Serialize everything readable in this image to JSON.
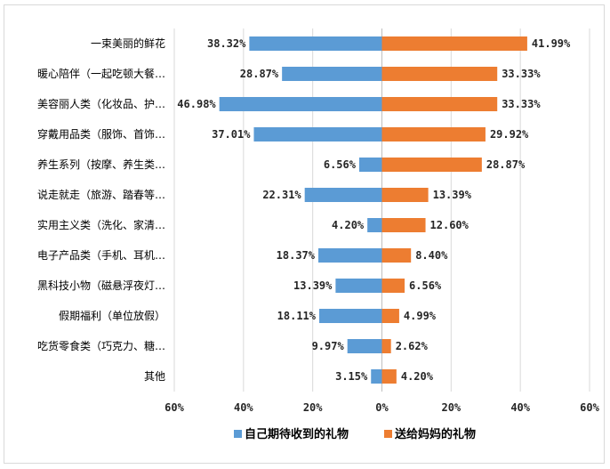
{
  "chart_data": {
    "type": "bar",
    "orientation": "horizontal-butterfly",
    "categories": [
      "一束美丽的鲜花",
      "暖心陪伴（一起吃顿大餐…",
      "美容丽人类（化妆品、护…",
      "穿戴用品类（服饰、首饰…",
      "养生系列（按摩、养生类…",
      "说走就走（旅游、踏春等…",
      "实用主义类（洗化、家清…",
      "电子产品类（手机、耳机…",
      "黑科技小物（磁悬浮夜灯…",
      "假期福利（单位放假）",
      "吃货零食类（巧克力、糖…",
      "其他"
    ],
    "series": [
      {
        "name": "自己期待收到的礼物",
        "color": "#5b9bd5",
        "values": [
          38.32,
          28.87,
          46.98,
          37.01,
          6.56,
          22.31,
          4.2,
          18.37,
          13.39,
          18.11,
          9.97,
          3.15
        ],
        "labels": [
          "38.32%",
          "28.87%",
          "46.98%",
          "37.01%",
          "6.56%",
          "22.31%",
          "4.20%",
          "18.37%",
          "13.39%",
          "18.11%",
          "9.97%",
          "3.15%"
        ]
      },
      {
        "name": "送给妈妈的礼物",
        "color": "#ed7d31",
        "values": [
          41.99,
          33.33,
          33.33,
          29.92,
          28.87,
          13.39,
          12.6,
          8.4,
          6.56,
          4.99,
          2.62,
          4.2
        ],
        "labels": [
          "41.99%",
          "33.33%",
          "33.33%",
          "29.92%",
          "28.87%",
          "13.39%",
          "12.60%",
          "8.40%",
          "6.56%",
          "4.99%",
          "2.62%",
          "4.20%"
        ]
      }
    ],
    "xlim": [
      -60,
      60
    ],
    "xticks": [
      -60,
      -40,
      -20,
      0,
      20,
      40,
      60
    ],
    "xtick_labels": [
      "60%",
      "40%",
      "20%",
      "0%",
      "20%",
      "40%",
      "60%"
    ],
    "grid": true,
    "legend_position": "bottom",
    "title": "",
    "xlabel": "",
    "ylabel": ""
  }
}
